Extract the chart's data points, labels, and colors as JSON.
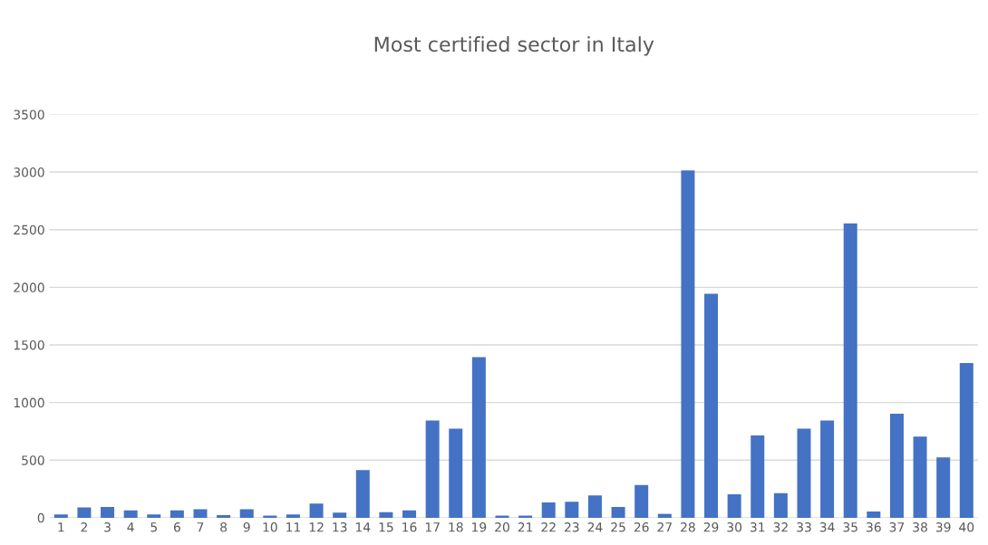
{
  "chart_data": {
    "type": "bar",
    "title": "Most certified sector in Italy",
    "categories": [
      "1",
      "2",
      "3",
      "4",
      "5",
      "6",
      "7",
      "8",
      "9",
      "10",
      "11",
      "12",
      "13",
      "14",
      "15",
      "16",
      "17",
      "18",
      "19",
      "20",
      "21",
      "22",
      "23",
      "24",
      "25",
      "26",
      "27",
      "28",
      "29",
      "30",
      "31",
      "32",
      "33",
      "34",
      "35",
      "36",
      "37",
      "38",
      "39",
      "40"
    ],
    "values": [
      15,
      75,
      80,
      50,
      15,
      50,
      60,
      10,
      60,
      5,
      15,
      110,
      30,
      400,
      35,
      50,
      830,
      760,
      1380,
      5,
      5,
      120,
      125,
      180,
      80,
      270,
      20,
      3000,
      1930,
      190,
      700,
      200,
      760,
      830,
      2540,
      40,
      890,
      690,
      510,
      1330
    ],
    "color": "#4472c4",
    "ylim": [
      0,
      3500
    ],
    "yticks": [
      0,
      500,
      1000,
      1500,
      2000,
      2500,
      3000,
      3500
    ],
    "grid": "y"
  }
}
